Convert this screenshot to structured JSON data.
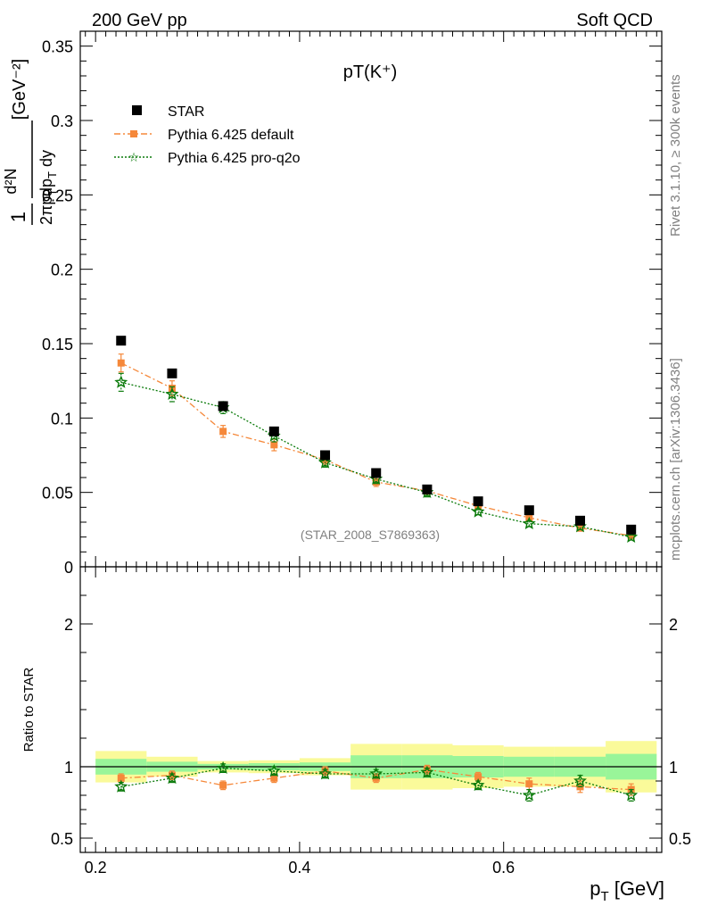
{
  "header": {
    "left": "200 GeV pp",
    "right": "Soft QCD"
  },
  "side_text": {
    "top": "Rivet 3.1.10, ≥ 300k events",
    "bottom": "mcplots.cern.ch [arXiv:1306.3436]"
  },
  "chart_data": {
    "type": "scatter",
    "title": "pT(K⁺)",
    "watermark": "(STAR_2008_S7869363)",
    "xlabel": "p_T [GeV]",
    "ylabel": "1/(2πp_T) d²N/(dp_T dy) [GeV⁻²]",
    "xlim": [
      0.185,
      0.755
    ],
    "ylim": [
      0,
      0.36
    ],
    "x_ticks": [
      "0.2",
      "0.4",
      "0.6"
    ],
    "y_ticks": [
      "0",
      "0.05",
      "0.1",
      "0.15",
      "0.2",
      "0.25",
      "0.3",
      "0.35"
    ],
    "legend": [
      "STAR",
      "Pythia 6.425 default",
      "Pythia 6.425 pro-q2o"
    ],
    "legend_position": "top-left",
    "colors": {
      "star": "#000000",
      "default": "#f5883a",
      "proq2o": "#0a7a0a",
      "band_inner": "#99f599",
      "band_outer": "#fafa9a"
    },
    "x": [
      0.225,
      0.275,
      0.325,
      0.375,
      0.425,
      0.475,
      0.525,
      0.575,
      0.625,
      0.675,
      0.725
    ],
    "bin_edges": [
      0.2,
      0.25,
      0.3,
      0.35,
      0.4,
      0.45,
      0.5,
      0.55,
      0.6,
      0.65,
      0.7,
      0.75
    ],
    "series": [
      {
        "name": "STAR",
        "values": [
          0.152,
          0.13,
          0.108,
          0.091,
          0.075,
          0.063,
          0.052,
          0.044,
          0.038,
          0.031,
          0.025
        ]
      },
      {
        "name": "Pythia 6.425 default",
        "values": [
          0.137,
          0.12,
          0.091,
          0.082,
          0.072,
          0.057,
          0.051,
          0.041,
          0.033,
          0.026,
          0.021
        ],
        "errors": [
          0.006,
          0.005,
          0.004,
          0.004,
          0.003,
          0.003,
          0.003,
          0.002,
          0.002,
          0.002,
          0.002
        ]
      },
      {
        "name": "Pythia 6.425 pro-q2o",
        "values": [
          0.124,
          0.116,
          0.107,
          0.088,
          0.07,
          0.059,
          0.05,
          0.037,
          0.029,
          0.027,
          0.02
        ],
        "errors": [
          0.006,
          0.005,
          0.004,
          0.004,
          0.003,
          0.003,
          0.003,
          0.002,
          0.002,
          0.002,
          0.002
        ]
      }
    ],
    "ratio": {
      "ylabel": "Ratio to STAR",
      "ylim": [
        0.4,
        2.4
      ],
      "y_ticks": [
        "0.5",
        "1",
        "2"
      ],
      "band_inner": [
        0.055,
        0.035,
        0.02,
        0.025,
        0.03,
        0.08,
        0.08,
        0.075,
        0.07,
        0.07,
        0.09
      ],
      "band_outer": [
        0.11,
        0.07,
        0.04,
        0.045,
        0.06,
        0.16,
        0.16,
        0.15,
        0.14,
        0.14,
        0.18
      ],
      "default": [
        0.92,
        0.94,
        0.87,
        0.92,
        0.97,
        0.92,
        0.98,
        0.93,
        0.88,
        0.86,
        0.84
      ],
      "default_err": [
        0.03,
        0.03,
        0.03,
        0.03,
        0.03,
        0.03,
        0.03,
        0.03,
        0.04,
        0.04,
        0.04
      ],
      "proq2o": [
        0.86,
        0.92,
        0.99,
        0.97,
        0.95,
        0.95,
        0.96,
        0.87,
        0.8,
        0.9,
        0.8
      ],
      "proq2o_err": [
        0.03,
        0.03,
        0.03,
        0.03,
        0.03,
        0.03,
        0.03,
        0.03,
        0.04,
        0.04,
        0.04
      ]
    }
  }
}
